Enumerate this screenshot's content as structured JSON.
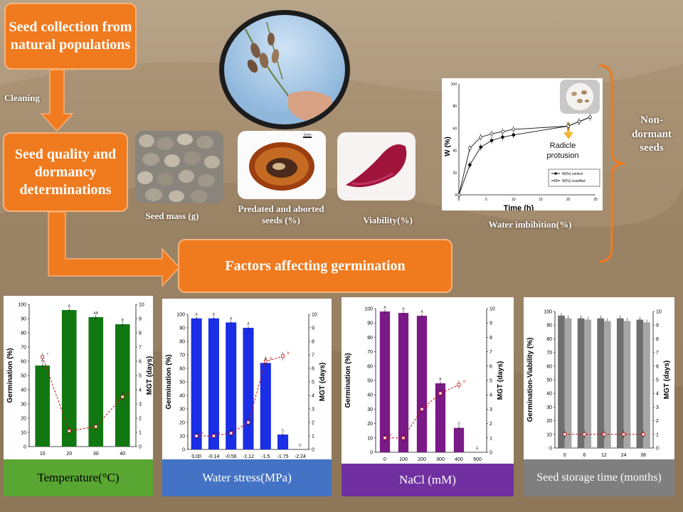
{
  "flow": {
    "box1": "Seed collection from natural populations",
    "cleaning": "Cleaning",
    "box2": "Seed quality and dormancy determinations",
    "box3": "Factors affecting germination",
    "nondormant": "Non-dormant seeds"
  },
  "photos": {
    "seed_mass": "Seed mass (g)",
    "predated": "Predated and aborted seeds (%)",
    "viability": "Viability(%)",
    "scale_bar": "1mm"
  },
  "imbibition": {
    "caption": "Water imbibition(%)",
    "radicle": "Radicle protusion",
    "ylabel": "W (%)",
    "xlabel": "Time (h)",
    "legend": [
      "W(%) control",
      "W(%) scarified"
    ],
    "xticks": [
      "0",
      "5",
      "10",
      "15",
      "20",
      "25"
    ],
    "yticks": [
      "0",
      "20",
      "40",
      "60",
      "80",
      "100"
    ]
  },
  "chart_data": [
    {
      "type": "line",
      "title": "Water imbibition(%)",
      "xlabel": "Time (h)",
      "ylabel": "W (%)",
      "xlim": [
        0,
        25
      ],
      "ylim": [
        0,
        100
      ],
      "series": [
        {
          "name": "W(%) control",
          "x": [
            0,
            2,
            4,
            6,
            8,
            10,
            20,
            22,
            24
          ],
          "y": [
            0,
            27,
            43,
            49,
            52,
            54,
            62,
            66,
            70
          ]
        },
        {
          "name": "W(%) scarified",
          "x": [
            0,
            2,
            4,
            6,
            8,
            10,
            20,
            22,
            24
          ],
          "y": [
            0,
            42,
            52,
            55,
            57,
            59,
            62,
            66,
            70
          ]
        }
      ]
    },
    {
      "type": "bar",
      "title": "Temperature(°C)",
      "categories": [
        "10",
        "20",
        "30",
        "40"
      ],
      "series": [
        {
          "name": "Germination (%)",
          "values": [
            57,
            96,
            91,
            86
          ],
          "letters": [
            "C",
            "A",
            "AB",
            "B"
          ]
        },
        {
          "name": "MGT (days)",
          "values": [
            6.3,
            1.1,
            1.4,
            3.5
          ],
          "letters": [
            "c",
            "",
            "",
            "b"
          ]
        }
      ],
      "ylabel": "Germination (%)",
      "y2label": "MGT (days)",
      "ylim": [
        0,
        100
      ],
      "y2lim": [
        0,
        10
      ],
      "yticks": [
        "0",
        "10",
        "20",
        "30",
        "40",
        "50",
        "60",
        "70",
        "80",
        "90",
        "100"
      ],
      "y2ticks": [
        "0",
        "1",
        "2",
        "3",
        "4",
        "5",
        "6",
        "7",
        "8",
        "9",
        "10"
      ]
    },
    {
      "type": "bar",
      "title": "Water stress(MPa)",
      "categories": [
        "0.00",
        "-0.14",
        "-0.56",
        "-1.12",
        "-1.5",
        "-1.75",
        "-2.24"
      ],
      "series": [
        {
          "name": "Germination (%)",
          "values": [
            97,
            97,
            94,
            90,
            64,
            11,
            0
          ],
          "letters": [
            "A",
            "A",
            "A",
            "A",
            "B",
            "C",
            "D"
          ]
        },
        {
          "name": "MGT (days)",
          "values": [
            1.0,
            1.0,
            1.2,
            2.0,
            6.5,
            6.9,
            null
          ],
          "letters": [
            "a",
            "a",
            "",
            "",
            "b",
            "b",
            ""
          ]
        }
      ],
      "ylabel": "Germination (%)",
      "y2label": "MGT (days)",
      "ylim": [
        0,
        100
      ],
      "y2lim": [
        0,
        10
      ],
      "yticks": [
        "0",
        "10",
        "20",
        "30",
        "40",
        "50",
        "60",
        "70",
        "80",
        "90",
        "100"
      ],
      "y2ticks": [
        "0",
        "1",
        "2",
        "3",
        "4",
        "5",
        "6",
        "7",
        "8",
        "9",
        "10"
      ]
    },
    {
      "type": "bar",
      "title": "NaCl (mM)",
      "categories": [
        "0",
        "100",
        "200",
        "300",
        "400",
        "500"
      ],
      "series": [
        {
          "name": "Germination (%)",
          "values": [
            98,
            97,
            95,
            48,
            17,
            0
          ],
          "letters": [
            "A",
            "A",
            "A",
            "B",
            "D",
            "E"
          ]
        },
        {
          "name": "MGT (days)",
          "values": [
            1.0,
            1.0,
            3.0,
            4.1,
            4.7,
            null
          ],
          "letters": [
            "a",
            "",
            "b",
            "",
            "d",
            ""
          ]
        }
      ],
      "ylabel": "Germination (%)",
      "y2label": "MGT (days)",
      "ylim": [
        0,
        100
      ],
      "y2lim": [
        0,
        10
      ],
      "yticks": [
        "0",
        "10",
        "20",
        "30",
        "40",
        "50",
        "60",
        "70",
        "80",
        "90",
        "100"
      ],
      "y2ticks": [
        "0",
        "1",
        "2",
        "3",
        "4",
        "5",
        "6",
        "7",
        "8",
        "9",
        "10"
      ]
    },
    {
      "type": "bar",
      "title": "Seed storage time (months)",
      "categories": [
        "0",
        "6",
        "12",
        "24",
        "36"
      ],
      "series": [
        {
          "name": "Germination",
          "values": [
            97,
            95,
            95,
            95,
            94
          ]
        },
        {
          "name": "Viability",
          "values": [
            95,
            94,
            93,
            93,
            92
          ]
        },
        {
          "name": "MGT (days)",
          "values": [
            1.0,
            1.0,
            1.0,
            1.0,
            1.0
          ]
        }
      ],
      "ylabel": "Germination-Viability (%)",
      "y2label": "MGT (days)",
      "ylim": [
        0,
        100
      ],
      "y2lim": [
        0,
        10
      ],
      "yticks": [
        "0",
        "10",
        "20",
        "30",
        "40",
        "50",
        "60",
        "70",
        "80",
        "90",
        "100"
      ],
      "y2ticks": [
        "0",
        "1",
        "2",
        "3",
        "4",
        "5",
        "6",
        "7",
        "8",
        "9",
        "10"
      ]
    }
  ],
  "colors": {
    "orange": "#f07a1e",
    "temp": "#117711",
    "water": "#1a2ee6",
    "nacl": "#7a1a86",
    "storage": "#7d7d7d",
    "mgt": "#cc1111",
    "foot_temp": "#5aa632",
    "foot_water": "#4472c4",
    "foot_nacl": "#7030a0",
    "foot_storage": "#7f7f7f"
  }
}
